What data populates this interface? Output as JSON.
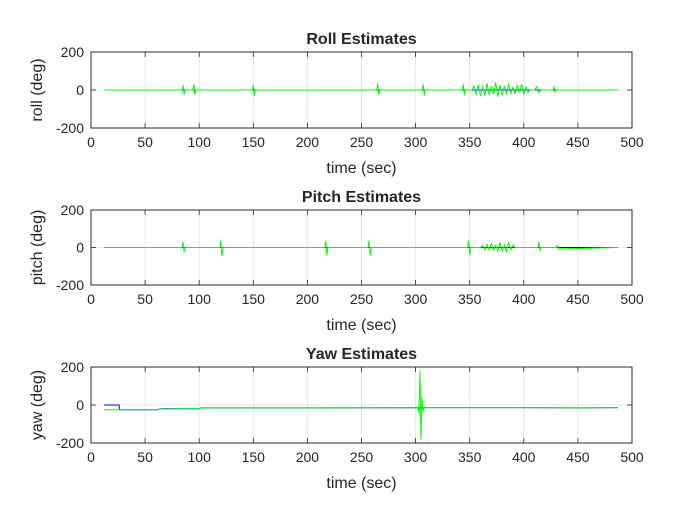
{
  "chart_data": [
    {
      "type": "line",
      "title": "Roll Estimates",
      "xlabel": "time (sec)",
      "ylabel": "roll (deg)",
      "xlim": [
        0,
        500
      ],
      "ylim": [
        -200,
        200
      ],
      "xticks": [
        "0",
        "50",
        "100",
        "150",
        "200",
        "250",
        "300",
        "350",
        "400",
        "450",
        "500"
      ],
      "yticks": [
        "-200",
        "0",
        "200"
      ],
      "grid": true,
      "series": [
        {
          "color": "#0000ff",
          "x": [
            12,
            80,
            150,
            200,
            260,
            300,
            350,
            400,
            450,
            487
          ],
          "y": [
            0,
            0,
            0,
            0,
            0,
            0,
            0,
            0,
            0,
            0
          ]
        },
        {
          "color": "#00ff00",
          "x": [
            12,
            84,
            85,
            86,
            87,
            94,
            95,
            96,
            97,
            149,
            150,
            151,
            152,
            264,
            265,
            266,
            267,
            306,
            307,
            308,
            309,
            343,
            344,
            345,
            346,
            352,
            354,
            356,
            358,
            360,
            362,
            364,
            366,
            368,
            370,
            372,
            374,
            376,
            378,
            380,
            382,
            384,
            386,
            388,
            390,
            392,
            394,
            396,
            398,
            400,
            402,
            404,
            406,
            410,
            412,
            414,
            416,
            427,
            428,
            429,
            430,
            487
          ],
          "y": [
            0,
            0,
            25,
            -25,
            0,
            0,
            30,
            -25,
            0,
            0,
            25,
            -30,
            0,
            0,
            35,
            -25,
            0,
            0,
            30,
            -30,
            0,
            0,
            30,
            -25,
            0,
            0,
            22,
            -25,
            28,
            -32,
            20,
            -30,
            35,
            -25,
            18,
            -20,
            40,
            -35,
            25,
            -28,
            20,
            -22,
            32,
            -18,
            15,
            -20,
            25,
            -12,
            30,
            -25,
            18,
            -15,
            0,
            0,
            20,
            -15,
            0,
            0,
            18,
            -12,
            0,
            0
          ]
        }
      ]
    },
    {
      "type": "line",
      "title": "Pitch Estimates",
      "xlabel": "time (sec)",
      "ylabel": "pitch (deg)",
      "xlim": [
        0,
        500
      ],
      "ylim": [
        -200,
        200
      ],
      "xticks": [
        "0",
        "50",
        "100",
        "150",
        "200",
        "250",
        "300",
        "350",
        "400",
        "450",
        "500"
      ],
      "yticks": [
        "-200",
        "0",
        "200"
      ],
      "grid": true,
      "series": [
        {
          "color": "#0000ff",
          "x": [
            12,
            80,
            150,
            200,
            260,
            300,
            350,
            400,
            450,
            487
          ],
          "y": [
            0,
            0,
            0,
            0,
            0,
            0,
            0,
            0,
            0,
            0
          ]
        },
        {
          "color": "#00ff00",
          "x": [
            12,
            84,
            85,
            86,
            87,
            119,
            120,
            121,
            122,
            216,
            217,
            218,
            219,
            256,
            257,
            258,
            259,
            348,
            349,
            350,
            351,
            360,
            362,
            364,
            366,
            368,
            370,
            372,
            374,
            376,
            378,
            380,
            382,
            384,
            386,
            388,
            390,
            392,
            394,
            413,
            414,
            415,
            416,
            430,
            431,
            432,
            487
          ],
          "y": [
            0,
            0,
            30,
            -25,
            0,
            0,
            35,
            -45,
            0,
            0,
            35,
            -40,
            0,
            0,
            35,
            -40,
            0,
            0,
            35,
            -40,
            0,
            0,
            12,
            -15,
            18,
            -12,
            22,
            -15,
            12,
            -18,
            25,
            -20,
            15,
            -25,
            28,
            -12,
            15,
            0,
            0,
            0,
            30,
            -20,
            0,
            0,
            12,
            -8,
            0
          ]
        }
      ]
    },
    {
      "type": "line",
      "title": "Yaw Estimates",
      "xlabel": "time (sec)",
      "ylabel": "yaw (deg)",
      "xlim": [
        0,
        500
      ],
      "ylim": [
        -200,
        200
      ],
      "xticks": [
        "0",
        "50",
        "100",
        "150",
        "200",
        "250",
        "300",
        "350",
        "400",
        "450",
        "500"
      ],
      "yticks": [
        "-200",
        "0",
        "200"
      ],
      "grid": true,
      "series": [
        {
          "color": "#0000ff",
          "x": [
            12,
            26,
            26.5,
            40,
            60,
            66,
            70,
            100,
            102,
            200,
            302,
            303,
            305,
            307,
            308,
            400,
            450,
            487
          ],
          "y": [
            0,
            0,
            -25,
            -25,
            -25,
            -20,
            -20,
            -20,
            -15,
            -15,
            -14,
            -20,
            -12,
            -18,
            -14,
            -14,
            -15,
            -14
          ],
          "note": ""
        },
        {
          "color": "#00ff00",
          "x": [
            12,
            26,
            40,
            60,
            66,
            70,
            100,
            102,
            200,
            302,
            303,
            304,
            305,
            306,
            307,
            308,
            400,
            450,
            487
          ],
          "y": [
            -25,
            -25,
            -25,
            -25,
            -22,
            -22,
            -20,
            -15,
            -15,
            -14,
            -40,
            180,
            -180,
            40,
            -30,
            -14,
            -14,
            -15,
            -14
          ]
        }
      ]
    }
  ]
}
